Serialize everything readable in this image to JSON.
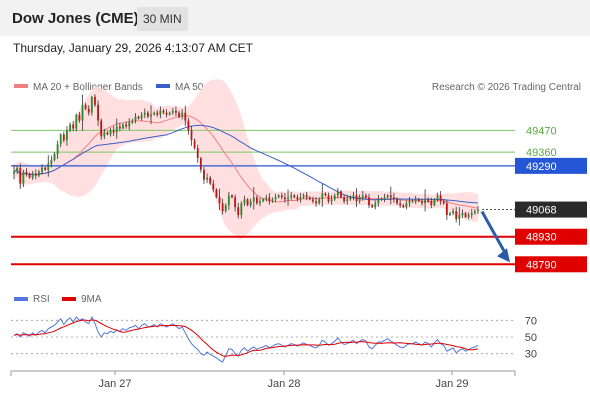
{
  "header": {
    "title": "Dow Jones (CME)",
    "timeframe": "30 MIN",
    "datetime": "Thursday, January 29, 2026 4:13:07 AM CET"
  },
  "legend": {
    "ma20": "MA 20 + Bollinger Bands",
    "ma50": "MA 50",
    "copyright": "Research © 2026 Trading Central"
  },
  "rsi_legend": {
    "rsi": "RSI",
    "ma9": "9MA"
  },
  "colors": {
    "up": "#2e8b2e",
    "down": "#c01818",
    "ma20": "#f08080",
    "band_fill": "#ffd9d9",
    "ma50": "#3a5fc8",
    "resistance": "#7dc865",
    "support": "#e00000",
    "pivot": "#2456d6",
    "arrow": "#2a5ca8",
    "rsi": "#5577dd",
    "rsi_ma": "#e00000"
  },
  "chart_data": {
    "type": "candlestick",
    "title": "Dow Jones (CME)",
    "timeframe": "30 MIN",
    "x_labels": [
      "Jan 27",
      "Jan 28",
      "Jan 29"
    ],
    "ylim": [
      48700,
      49650
    ],
    "levels": [
      {
        "value": 49470,
        "label": "49470",
        "type": "resistance"
      },
      {
        "value": 49360,
        "label": "49360",
        "type": "resistance"
      },
      {
        "value": 49290,
        "label": "49290",
        "type": "pivot"
      },
      {
        "value": 48930,
        "label": "48930",
        "type": "support"
      },
      {
        "value": 48790,
        "label": "48790",
        "type": "support"
      }
    ],
    "last_price": {
      "value": 49068,
      "label": "49068"
    },
    "closes": [
      49260,
      49280,
      49200,
      49260,
      49250,
      49230,
      49250,
      49240,
      49260,
      49280,
      49270,
      49300,
      49320,
      49350,
      49400,
      49450,
      49420,
      49470,
      49500,
      49480,
      49550,
      49520,
      49600,
      49580,
      49560,
      49640,
      49600,
      49520,
      49440,
      49460,
      49450,
      49470,
      49460,
      49490,
      49480,
      49500,
      49490,
      49510,
      49520,
      49540,
      49530,
      49550,
      49560,
      49540,
      49550,
      49560,
      49550,
      49570,
      49560,
      49550,
      49560,
      49570,
      49560,
      49540,
      49560,
      49520,
      49470,
      49420,
      49380,
      49330,
      49270,
      49220,
      49230,
      49200,
      49170,
      49130,
      49100,
      49060,
      49090,
      49140,
      49130,
      49080,
      49040,
      49100,
      49120,
      49090,
      49110,
      49130,
      49100,
      49110,
      49120,
      49130,
      49110,
      49120,
      49130,
      49140,
      49130,
      49120,
      49130,
      49140,
      49130,
      49120,
      49130,
      49140,
      49130,
      49120,
      49110,
      49100,
      49120,
      49150,
      49140,
      49110,
      49120,
      49140,
      49160,
      49130,
      49110,
      49120,
      49130,
      49140,
      49110,
      49130,
      49140,
      49130,
      49090,
      49080,
      49100,
      49120,
      49120,
      49130,
      49140,
      49130,
      49120,
      49100,
      49090,
      49080,
      49100,
      49110,
      49110,
      49120,
      49110,
      49100,
      49120,
      49110,
      49090,
      49120,
      49140,
      49110,
      49100,
      49040,
      49050,
      49060,
      49020,
      49040,
      49050,
      49030,
      49040,
      49050,
      49060,
      49068
    ],
    "rsi": {
      "levels": [
        70,
        50,
        30
      ],
      "rsi": [
        52,
        54,
        50,
        55,
        53,
        51,
        55,
        52,
        56,
        58,
        55,
        60,
        62,
        64,
        68,
        72,
        65,
        70,
        73,
        68,
        74,
        70,
        72,
        68,
        66,
        74,
        66,
        56,
        50,
        55,
        54,
        57,
        55,
        58,
        57,
        60,
        58,
        61,
        62,
        64,
        60,
        64,
        66,
        62,
        63,
        65,
        62,
        66,
        64,
        62,
        64,
        66,
        63,
        60,
        62,
        55,
        48,
        42,
        38,
        35,
        30,
        28,
        32,
        29,
        27,
        25,
        22,
        20,
        28,
        36,
        35,
        30,
        27,
        34,
        37,
        33,
        36,
        38,
        35,
        37,
        38,
        40,
        37,
        39,
        41,
        42,
        40,
        38,
        40,
        42,
        41,
        39,
        41,
        43,
        41,
        40,
        38,
        37,
        40,
        46,
        44,
        40,
        42,
        45,
        49,
        44,
        41,
        42,
        44,
        46,
        42,
        45,
        47,
        45,
        38,
        36,
        40,
        44,
        44,
        46,
        48,
        45,
        43,
        40,
        38,
        37,
        40,
        42,
        42,
        44,
        42,
        40,
        44,
        42,
        38,
        43,
        47,
        42,
        40,
        33,
        35,
        37,
        31,
        34,
        36,
        33,
        35,
        37,
        38,
        40
      ]
    }
  }
}
